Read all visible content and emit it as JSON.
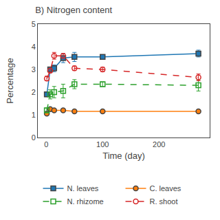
{
  "chart_data": {
    "type": "line",
    "title": "B) Nitrogen content",
    "x_label": "Time (day)",
    "y_label": "Percentage",
    "x": [
      1,
      7,
      14,
      30,
      50,
      100,
      270
    ],
    "xlim": [
      -15,
      290
    ],
    "xticks": [
      0,
      100,
      200
    ],
    "ylim": [
      0,
      5
    ],
    "yticks": [
      0,
      1,
      2,
      3,
      4,
      5
    ],
    "grid": false,
    "legend": "bottom",
    "series": [
      {
        "name": "N. leaves",
        "values": [
          1.9,
          3.0,
          3.05,
          3.5,
          3.55,
          3.55,
          3.7
        ],
        "errors": [
          0.1,
          0.1,
          0.15,
          0.2,
          0.2,
          0.1,
          0.15
        ],
        "marker": "square",
        "line_style": "solid"
      },
      {
        "name": "C. leaves",
        "values": [
          1.05,
          1.25,
          1.2,
          1.2,
          1.15,
          1.15,
          1.15
        ],
        "errors": [
          0.05,
          0.05,
          0.05,
          0.05,
          0.05,
          0.05,
          0.05
        ],
        "marker": "circle",
        "line_style": "solid"
      },
      {
        "name": "N. rhizome",
        "values": [
          1.2,
          1.9,
          2.0,
          2.05,
          2.35,
          2.35,
          2.3
        ],
        "errors": [
          0.1,
          0.2,
          0.25,
          0.3,
          0.2,
          0.1,
          0.25
        ],
        "marker": "square-open",
        "line_style": "dashed"
      },
      {
        "name": "R. shoot",
        "values": [
          2.6,
          2.95,
          3.6,
          3.6,
          3.05,
          3.0,
          2.65
        ],
        "errors": [
          0.1,
          0.1,
          0.15,
          0.1,
          0.1,
          0.1,
          0.15
        ],
        "marker": "circle-open",
        "line_style": "dashed"
      }
    ]
  }
}
